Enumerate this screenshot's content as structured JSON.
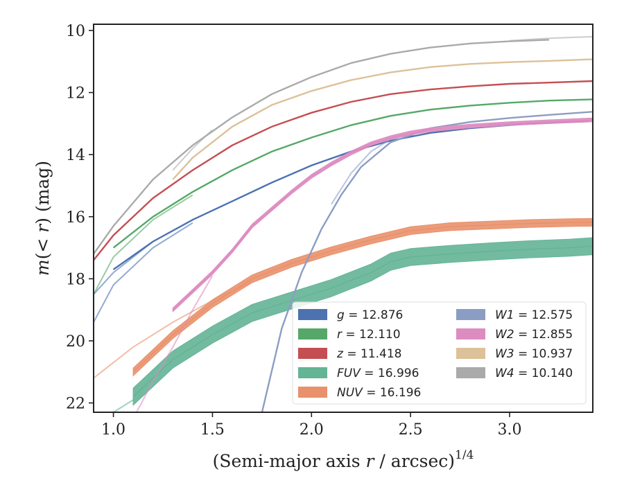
{
  "chart_data": {
    "type": "line",
    "xlabel": "(Semi-major axis r / arcsec)^1/4",
    "ylabel": "m(< r) (mag)",
    "xlabel_parts": {
      "pre": "(Semi-major axis ",
      "var": "r",
      "post": " / arcsec)",
      "sup": "1/4"
    },
    "ylabel_parts": {
      "pre": "m(",
      "var": "< r",
      "post": ") (mag)"
    },
    "xlim": [
      0.9,
      3.42
    ],
    "ylim": [
      22.3,
      9.8
    ],
    "y_inverted": true,
    "grid": false,
    "legend_placement": "lower-right",
    "x_ticks": [
      1.0,
      1.5,
      2.0,
      2.5,
      3.0
    ],
    "x_tick_labels": [
      "1.0",
      "1.5",
      "2.0",
      "2.5",
      "3.0"
    ],
    "y_ticks": [
      10,
      12,
      14,
      16,
      18,
      20,
      22
    ],
    "y_tick_labels": [
      "10",
      "12",
      "14",
      "16",
      "18",
      "20",
      "22"
    ],
    "series": [
      {
        "name": "g = 12.876",
        "label_var": "g",
        "label_value": "12.876",
        "color": "#4c72b0",
        "width": 0.06,
        "x": [
          1.0,
          1.2,
          1.4,
          1.6,
          1.8,
          2.0,
          2.2,
          2.4,
          2.6,
          2.8,
          3.0,
          3.2,
          3.4
        ],
        "y": [
          17.7,
          16.8,
          16.1,
          15.5,
          14.9,
          14.35,
          13.9,
          13.55,
          13.3,
          13.15,
          13.05,
          12.97,
          12.93
        ],
        "extra_lines": [
          {
            "x": [
              0.9,
              1.0,
              1.2,
              1.4
            ],
            "y": [
              19.4,
              18.2,
              17.0,
              16.2
            ]
          },
          {
            "x": [
              0.9,
              1.0,
              1.2
            ],
            "y": [
              18.5,
              17.8,
              16.8
            ]
          }
        ]
      },
      {
        "name": "r = 12.110",
        "label_var": "r",
        "label_value": "12.110",
        "color": "#55a868",
        "width": 0.06,
        "x": [
          1.0,
          1.2,
          1.4,
          1.6,
          1.8,
          2.0,
          2.2,
          2.4,
          2.6,
          2.8,
          3.0,
          3.2,
          3.42
        ],
        "y": [
          17.0,
          16.0,
          15.2,
          14.5,
          13.9,
          13.45,
          13.05,
          12.75,
          12.55,
          12.42,
          12.33,
          12.26,
          12.22
        ],
        "extra_lines": [
          {
            "x": [
              0.9,
              1.0,
              1.2,
              1.4
            ],
            "y": [
              18.5,
              17.3,
              16.1,
              15.3
            ]
          }
        ]
      },
      {
        "name": "z = 11.418",
        "label_var": "z",
        "label_value": "11.418",
        "color": "#c44e52",
        "width": 0.06,
        "x": [
          0.9,
          1.0,
          1.2,
          1.4,
          1.6,
          1.8,
          2.0,
          2.2,
          2.4,
          2.6,
          2.8,
          3.0,
          3.2,
          3.42
        ],
        "y": [
          17.4,
          16.6,
          15.4,
          14.5,
          13.7,
          13.1,
          12.65,
          12.3,
          12.05,
          11.9,
          11.8,
          11.72,
          11.68,
          11.63
        ],
        "extra_lines": []
      },
      {
        "name": "FUV = 16.996",
        "label_var": "FUV",
        "label_value": "16.996",
        "color": "#64b496",
        "width": 0.55,
        "x": [
          1.1,
          1.3,
          1.5,
          1.7,
          1.9,
          2.1,
          2.3,
          2.4,
          2.5,
          2.7,
          2.9,
          3.1,
          3.3,
          3.42
        ],
        "y": [
          21.8,
          20.6,
          19.8,
          19.1,
          18.7,
          18.3,
          17.8,
          17.45,
          17.3,
          17.2,
          17.12,
          17.05,
          17.0,
          16.95
        ],
        "extra_lines": [
          {
            "x": [
              0.9,
              1.0,
              1.1
            ],
            "y": [
              22.6,
              22.3,
              21.9
            ]
          }
        ]
      },
      {
        "name": "NUV = 16.196",
        "label_var": "NUV",
        "label_value": "16.196",
        "color": "#e9916b",
        "width": 0.25,
        "x": [
          1.1,
          1.3,
          1.5,
          1.7,
          1.9,
          2.1,
          2.3,
          2.5,
          2.7,
          2.9,
          3.1,
          3.3,
          3.42
        ],
        "y": [
          21.0,
          19.8,
          18.8,
          18.0,
          17.5,
          17.1,
          16.75,
          16.45,
          16.32,
          16.27,
          16.22,
          16.19,
          16.18
        ],
        "extra_lines": [
          {
            "x": [
              0.9,
              1.1,
              1.3,
              1.5,
              1.7
            ],
            "y": [
              21.2,
              20.2,
              19.4,
              18.7,
              18.1
            ]
          }
        ]
      },
      {
        "name": "W1 = 12.575",
        "label_var": "W1",
        "label_value": "12.575",
        "color": "#8c9dc4",
        "width": 0.06,
        "x": [
          1.75,
          1.85,
          1.95,
          2.05,
          2.15,
          2.25,
          2.4,
          2.6,
          2.8,
          3.0,
          3.2,
          3.42
        ],
        "y": [
          22.3,
          19.6,
          17.8,
          16.4,
          15.3,
          14.4,
          13.6,
          13.15,
          12.95,
          12.82,
          12.72,
          12.62
        ],
        "extra_lines": [
          {
            "x": [
              2.1,
              2.2,
              2.3,
              2.4,
              2.5
            ],
            "y": [
              15.6,
              14.6,
              13.9,
              13.5,
              13.3
            ]
          }
        ]
      },
      {
        "name": "W2 = 12.855",
        "label_var": "W2",
        "label_value": "12.855",
        "color": "#dd8cc0",
        "width": 0.12,
        "x": [
          1.3,
          1.4,
          1.5,
          1.6,
          1.7,
          1.8,
          1.9,
          2.0,
          2.1,
          2.2,
          2.3,
          2.4,
          2.5,
          2.6,
          2.8,
          3.0,
          3.2,
          3.42
        ],
        "y": [
          19.0,
          18.4,
          17.8,
          17.1,
          16.3,
          15.75,
          15.2,
          14.7,
          14.3,
          13.95,
          13.65,
          13.45,
          13.3,
          13.2,
          13.08,
          13.0,
          12.94,
          12.88
        ],
        "extra_lines": [
          {
            "x": [
              1.1,
              1.2,
              1.3,
              1.4,
              1.5
            ],
            "y": [
              22.5,
              21.3,
              20.2,
              19.0,
              17.9
            ]
          }
        ]
      },
      {
        "name": "W3 = 10.937",
        "label_var": "W3",
        "label_value": "10.937",
        "color": "#dcc199",
        "width": 0.06,
        "x": [
          1.3,
          1.4,
          1.6,
          1.8,
          2.0,
          2.2,
          2.4,
          2.6,
          2.8,
          3.0,
          3.2,
          3.42
        ],
        "y": [
          14.8,
          14.1,
          13.1,
          12.4,
          11.95,
          11.6,
          11.35,
          11.18,
          11.08,
          11.02,
          10.98,
          10.93
        ],
        "extra_lines": []
      },
      {
        "name": "W4 = 10.140",
        "label_var": "W4",
        "label_value": "10.140",
        "color": "#aaaaaa",
        "width": 0.06,
        "x": [
          0.9,
          1.0,
          1.2,
          1.4,
          1.6,
          1.8,
          2.0,
          2.2,
          2.4,
          2.6,
          2.8,
          3.0,
          3.2
        ],
        "y": [
          17.2,
          16.3,
          14.8,
          13.7,
          12.8,
          12.05,
          11.5,
          11.05,
          10.75,
          10.55,
          10.42,
          10.35,
          10.3
        ],
        "extra_lines": [
          {
            "x": [
              1.3,
              1.4,
              1.5
            ],
            "y": [
              14.5,
              13.8,
              13.2
            ]
          },
          {
            "x": [
              3.0,
              3.2,
              3.42
            ],
            "y": [
              10.33,
              10.25,
              10.2
            ]
          }
        ]
      }
    ],
    "legend_layout": {
      "columns": [
        [
          "g = 12.876",
          "r = 12.110",
          "z = 11.418",
          "FUV = 16.996",
          "NUV = 16.196"
        ],
        [
          "W1 = 12.575",
          "W2 = 12.855",
          "W3 = 10.937",
          "W4 = 10.140"
        ]
      ]
    }
  }
}
